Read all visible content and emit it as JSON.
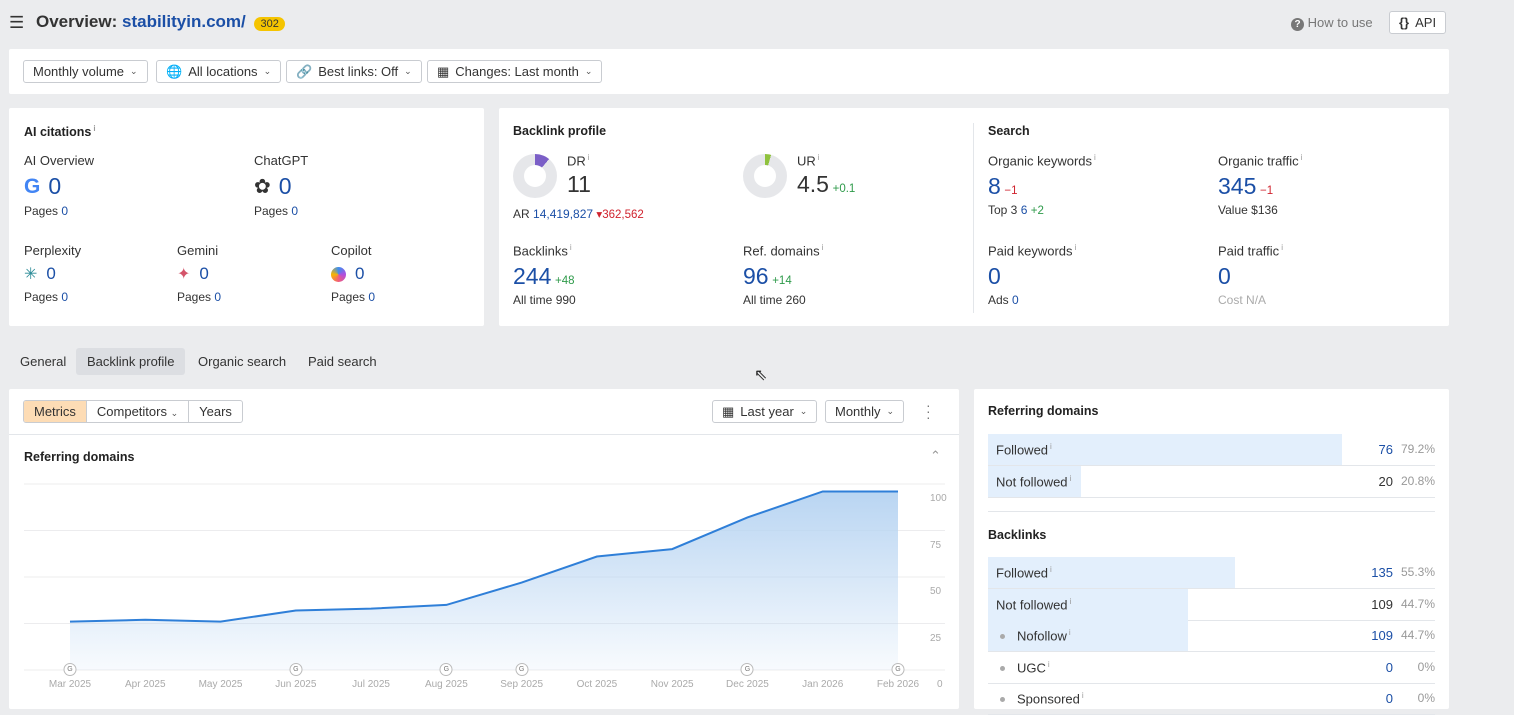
{
  "header": {
    "title": "Overview:",
    "domain": "stabilityin.com/",
    "badge": "302",
    "how_to_use": "How to use",
    "api": "API"
  },
  "filters": [
    "Monthly volume",
    "All locations",
    "Best links: Off",
    "Changes: Last month"
  ],
  "ai": {
    "title": "AI citations",
    "items": [
      {
        "name": "AI Overview",
        "value": "0",
        "pages_label": "Pages",
        "pages": "0"
      },
      {
        "name": "ChatGPT",
        "value": "0",
        "pages_label": "Pages",
        "pages": "0"
      },
      {
        "name": "Perplexity",
        "value": "0",
        "pages_label": "Pages",
        "pages": "0"
      },
      {
        "name": "Gemini",
        "value": "0",
        "pages_label": "Pages",
        "pages": "0"
      },
      {
        "name": "Copilot",
        "value": "0",
        "pages_label": "Pages",
        "pages": "0"
      }
    ]
  },
  "backlink": {
    "title": "Backlink profile",
    "dr_label": "DR",
    "dr": "11",
    "dr_fraction": 0.11,
    "ar_label": "AR",
    "ar": "14,419,827",
    "ar_change": "362,562",
    "ur_label": "UR",
    "ur": "4.5",
    "ur_change": "+0.1",
    "ur_fraction": 0.045,
    "backlinks_label": "Backlinks",
    "backlinks": "244",
    "backlinks_change": "+48",
    "bl_all_label": "All time",
    "bl_all": "990",
    "refdomains_label": "Ref. domains",
    "refdomains": "96",
    "refdomains_change": "+14",
    "rd_all_label": "All time",
    "rd_all": "260"
  },
  "search": {
    "title": "Search",
    "ok_label": "Organic keywords",
    "ok": "8",
    "ok_change": "−1",
    "top3_label": "Top 3",
    "top3": "6",
    "top3_change": "+2",
    "ot_label": "Organic traffic",
    "ot": "345",
    "ot_change": "−1",
    "value_label": "Value",
    "value": "$136",
    "pk_label": "Paid keywords",
    "pk": "0",
    "ads_label": "Ads",
    "ads": "0",
    "pt_label": "Paid traffic",
    "pt": "0",
    "cost_label": "Cost",
    "cost": "N/A"
  },
  "tabs": [
    "General",
    "Backlink profile",
    "Organic search",
    "Paid search"
  ],
  "chart_toolbar": {
    "metrics": "Metrics",
    "competitors": "Competitors",
    "years": "Years",
    "period": "Last year",
    "interval": "Monthly"
  },
  "chart_data": {
    "type": "area",
    "title": "Referring domains",
    "categories": [
      "Mar 2025",
      "Apr 2025",
      "May 2025",
      "Jun 2025",
      "Jul 2025",
      "Aug 2025",
      "Sep 2025",
      "Oct 2025",
      "Nov 2025",
      "Dec 2025",
      "Jan 2026",
      "Feb 2026"
    ],
    "series": [
      {
        "name": "Referring domains",
        "values": [
          26,
          27,
          26,
          32,
          33,
          35,
          47,
          61,
          65,
          82,
          96,
          96
        ]
      }
    ],
    "ylim": [
      0,
      100
    ],
    "yticks": [
      0,
      25,
      50,
      75,
      100
    ],
    "yaxis": "right",
    "grid": true,
    "google_update_markers": [
      "Mar 2025",
      "Jun 2025",
      "Aug 2025",
      "Sep 2025",
      "Dec 2025",
      "Feb 2026"
    ],
    "marker_label": "G",
    "color": "#2f7fd8"
  },
  "side": {
    "rd_title": "Referring domains",
    "rd_rows": [
      {
        "name": "Followed",
        "value": "76",
        "pct": "79.2%",
        "frac": 0.792
      },
      {
        "name": "Not followed",
        "value": "20",
        "pct": "20.8%",
        "frac": 0.208
      }
    ],
    "bl_title": "Backlinks",
    "bl_rows": [
      {
        "name": "Followed",
        "value": "135",
        "pct": "55.3%",
        "frac": 0.553,
        "sub": false
      },
      {
        "name": "Not followed",
        "value": "109",
        "pct": "44.7%",
        "frac": 0.447,
        "sub": false
      },
      {
        "name": "Nofollow",
        "value": "109",
        "pct": "44.7%",
        "frac": 0.447,
        "sub": true
      },
      {
        "name": "UGC",
        "value": "0",
        "pct": "0%",
        "frac": 0,
        "sub": true
      },
      {
        "name": "Sponsored",
        "value": "0",
        "pct": "0%",
        "frac": 0,
        "sub": true
      }
    ]
  }
}
